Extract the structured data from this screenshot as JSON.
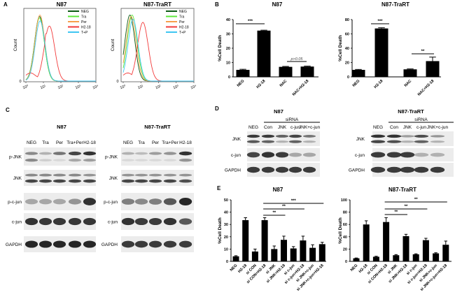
{
  "panel_labels": {
    "A": "A",
    "B": "B",
    "C": "C",
    "D": "D",
    "E": "E"
  },
  "chart_data": [
    {
      "id": "A-N87",
      "type": "line",
      "title": "N87",
      "xlabel": "",
      "ylabel": "Count",
      "xscale": "log",
      "xlim": [
        1,
        10000
      ],
      "x_tick_labels": [
        "10⁰",
        "10¹",
        "10²",
        "10³",
        "10⁴"
      ],
      "y_tick_labels": [
        "0"
      ],
      "legend_position": "top-right",
      "series": [
        {
          "name": "NEG",
          "color": "#0b5a12",
          "mode": 6,
          "relative_peak": 0.88
        },
        {
          "name": "Tra",
          "color": "#5ee83c",
          "mode": 6,
          "relative_peak": 0.86
        },
        {
          "name": "Per",
          "color": "#f7a04c",
          "mode": 6.3,
          "relative_peak": 0.9
        },
        {
          "name": "H2-18",
          "color": "#f23a3a",
          "mode": 22,
          "relative_peak": 0.75
        },
        {
          "name": "T+P",
          "color": "#3ec6f2",
          "mode": 6.5,
          "relative_peak": 0.82
        }
      ]
    },
    {
      "id": "A-N87-TraRT",
      "type": "line",
      "title": "N87-TraRT",
      "xlabel": "",
      "ylabel": "Count",
      "xscale": "log",
      "xlim": [
        1,
        10000
      ],
      "x_tick_labels": [
        "10⁰",
        "10¹",
        "10²",
        "10³",
        "10⁴"
      ],
      "y_tick_labels": [
        "0"
      ],
      "legend_position": "top-right",
      "series": [
        {
          "name": "NEG",
          "color": "#0b5a12",
          "mode": 2.4,
          "relative_peak": 0.9
        },
        {
          "name": "Tra",
          "color": "#5ee83c",
          "mode": 3.2,
          "relative_peak": 0.9
        },
        {
          "name": "Per",
          "color": "#f7a04c",
          "mode": 2.8,
          "relative_peak": 0.88
        },
        {
          "name": "H2-18",
          "color": "#f23a3a",
          "mode": 13,
          "relative_peak": 0.8
        },
        {
          "name": "T+P",
          "color": "#3ec6f2",
          "mode": 3.6,
          "relative_peak": 0.84
        }
      ]
    },
    {
      "id": "B-N87",
      "type": "bar",
      "title": "N87",
      "ylabel": "%Cell Death",
      "ylim": [
        0,
        40
      ],
      "y_ticks": [
        "0",
        "10",
        "20",
        "30",
        "40"
      ],
      "categories": [
        "NEG",
        "H2-18",
        "NAC",
        "NAC+H2-18"
      ],
      "values": [
        4.9,
        32.3,
        7.0,
        7.2
      ],
      "errors": [
        0.4,
        0.3,
        0.3,
        0.3
      ],
      "annotations": [
        {
          "from": 0,
          "to": 1,
          "label": "***"
        },
        {
          "from": 2,
          "to": 3,
          "label": "p>0.05"
        }
      ]
    },
    {
      "id": "B-N87-TraRT",
      "type": "bar",
      "title": "N87-TraRT",
      "ylabel": "%Cell Death",
      "ylim": [
        0,
        80
      ],
      "y_ticks": [
        "0",
        "20",
        "40",
        "60",
        "80"
      ],
      "categories": [
        "NEG",
        "H2-18",
        "NAC",
        "NAC+H2-18"
      ],
      "values": [
        9.8,
        67.6,
        10.5,
        22
      ],
      "errors": [
        0.6,
        1.0,
        0.6,
        5.6
      ],
      "annotations": [
        {
          "from": 0,
          "to": 1,
          "label": "***"
        },
        {
          "from": 2,
          "to": 3,
          "label": "**"
        }
      ]
    },
    {
      "id": "E-N87",
      "type": "bar",
      "title": "N87",
      "ylabel": "%Cell Death",
      "ylim": [
        0,
        50
      ],
      "y_ticks": [
        "0",
        "10",
        "20",
        "30",
        "40",
        "50"
      ],
      "categories": [
        "NEG",
        "H2-18",
        "si CON",
        "si CON+H2-18",
        "si JNK",
        "si JNK+H2-18",
        "si c-jun",
        "si c-jun+H2-18",
        "si JNK+c-jun",
        "si JNK+c-jun+H2-18"
      ],
      "values": [
        4.1,
        33.5,
        8,
        33.5,
        10,
        17.5,
        10.5,
        17,
        11,
        14
      ],
      "errors": [
        0.5,
        2,
        2,
        2,
        2.5,
        3,
        1.5,
        3.5,
        2.5,
        1.5
      ],
      "annotations": [
        {
          "from": 3,
          "to": 9,
          "label": "***"
        },
        {
          "from": 3,
          "to": 7,
          "label": "**"
        },
        {
          "from": 3,
          "to": 5,
          "label": "**"
        }
      ]
    },
    {
      "id": "E-N87-TraRT",
      "type": "bar",
      "title": "N87-TraRT",
      "ylabel": "%Cell Death",
      "ylim": [
        0,
        100
      ],
      "y_ticks": [
        "0",
        "20",
        "40",
        "60",
        "80",
        "100"
      ],
      "categories": [
        "NEG",
        "H2-18",
        "si CON",
        "si CON+H2-18",
        "si JNK",
        "si JNK+H2-18",
        "si c-jun",
        "si c-jun+H2-18",
        "si JNK+c-jun",
        "si JNK+c-jun+H2-18"
      ],
      "values": [
        5,
        60,
        7.5,
        64,
        10,
        41,
        11.5,
        34.5,
        13,
        27
      ],
      "errors": [
        0.5,
        6,
        0.8,
        7,
        1,
        3,
        0.8,
        3,
        1,
        6
      ],
      "annotations": [
        {
          "from": 3,
          "to": 9,
          "label": "**"
        },
        {
          "from": 3,
          "to": 7,
          "label": "**"
        },
        {
          "from": 3,
          "to": 5,
          "label": "**"
        }
      ]
    }
  ],
  "blots": [
    {
      "id": "C-N87",
      "title": "N87",
      "lanes": [
        "NEG",
        "Tra",
        "Per",
        "Tra+Per",
        "H2-18"
      ],
      "rows": [
        {
          "label": "p-JNK",
          "bands": [
            [
              0.5,
              0.3,
              0.6,
              0.85,
              0.95
            ],
            [
              0.5,
              0.15,
              0.1,
              0.35,
              0.4
            ]
          ]
        },
        {
          "label": "JNK",
          "bands": [
            [
              0.5,
              0.5,
              0.5,
              0.5,
              0.45
            ],
            [
              0.85,
              0.85,
              0.85,
              0.85,
              0.85
            ]
          ]
        },
        {
          "label": "p-c-jun",
          "bands": [
            [
              0.35,
              0.35,
              0.35,
              0.45,
              0.95
            ]
          ]
        },
        {
          "label": "c-jun",
          "bands": [
            [
              0.95,
              0.92,
              0.92,
              0.92,
              0.92
            ]
          ]
        },
        {
          "label": "GAPDH",
          "bands": [
            [
              1,
              1,
              1,
              1,
              1
            ]
          ]
        }
      ]
    },
    {
      "id": "C-N87-TraRT",
      "title": "N87-TraRT",
      "lanes": [
        "NEG",
        "Tra",
        "Per",
        "Tra+Per",
        "H2-18"
      ],
      "rows": [
        {
          "label": "p-JNK",
          "bands": [
            [
              0.3,
              0.25,
              0.4,
              0.45,
              0.95
            ],
            [
              0.1,
              0.1,
              0.1,
              0.1,
              0.45
            ]
          ]
        },
        {
          "label": "JNK",
          "bands": [
            [
              0.45,
              0.45,
              0.45,
              0.45,
              0.45
            ],
            [
              0.85,
              0.85,
              0.85,
              0.85,
              0.8
            ]
          ]
        },
        {
          "label": "p-c-jun",
          "bands": [
            [
              0.55,
              0.5,
              0.55,
              0.75,
              1
            ]
          ]
        },
        {
          "label": "c-jun",
          "bands": [
            [
              0.95,
              0.9,
              0.9,
              0.95,
              0.75
            ]
          ]
        },
        {
          "label": "GAPDH",
          "bands": [
            [
              0.9,
              0.9,
              0.9,
              0.9,
              0.9
            ]
          ]
        }
      ]
    },
    {
      "id": "D-N87",
      "title": "N87",
      "group_label": "siRNA",
      "lanes": [
        "NEG",
        "Con",
        "JNK",
        "c-jun",
        "JNK+c-jun"
      ],
      "rows": [
        {
          "label": "JNK",
          "bands": [
            [
              0.9,
              0.9,
              0.7,
              0.85,
              0.6
            ],
            [
              0.75,
              0.7,
              0.3,
              0.7,
              0.3
            ]
          ]
        },
        {
          "label": "c-jun",
          "bands": [
            [
              0.85,
              0.95,
              0.9,
              0.35,
              0.35
            ]
          ]
        },
        {
          "label": "GAPDH",
          "bands": [
            [
              0.9,
              0.9,
              0.9,
              0.9,
              0.9
            ]
          ]
        }
      ]
    },
    {
      "id": "D-N87-TraRT",
      "title": "N87-TraRT",
      "group_label": "siRNA",
      "lanes": [
        "NEG",
        "Con",
        "JNK",
        "c-jun",
        "JNK+c-jun"
      ],
      "rows": [
        {
          "label": "JNK",
          "bands": [
            [
              0.95,
              0.95,
              0.4,
              0.8,
              0.45
            ],
            [
              0.85,
              0.8,
              0.3,
              0.7,
              0.3
            ]
          ]
        },
        {
          "label": "c-jun",
          "bands": [
            [
              0.9,
              0.9,
              0.9,
              0.3,
              0.3
            ]
          ]
        },
        {
          "label": "GAPDH",
          "bands": [
            [
              0.9,
              0.9,
              0.9,
              0.9,
              0.9
            ]
          ]
        }
      ]
    }
  ]
}
